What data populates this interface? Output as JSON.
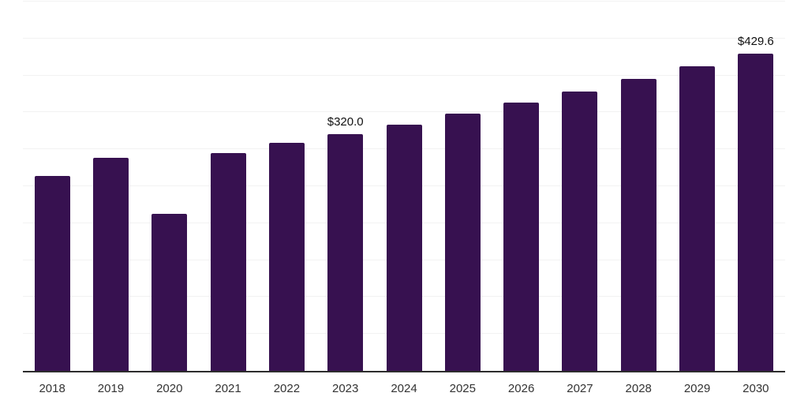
{
  "chart_data": {
    "type": "bar",
    "title": "",
    "subtitle": "",
    "xlabel": "",
    "ylabel": "",
    "categories": [
      "2018",
      "2019",
      "2020",
      "2021",
      "2022",
      "2023",
      "2024",
      "2025",
      "2026",
      "2027",
      "2028",
      "2029",
      "2030"
    ],
    "values": [
      264.0,
      289.0,
      213.0,
      295.0,
      309.0,
      320.0,
      333.8,
      348.1,
      363.1,
      378.7,
      395.0,
      412.0,
      429.6
    ],
    "value_labels": [
      {
        "category": "2023",
        "text": "$320.0"
      },
      {
        "category": "2030",
        "text": "$429.6"
      }
    ],
    "ylim": [
      0,
      500
    ],
    "gridline_step": 50,
    "grid": "horizontal-only",
    "y_axis_tick_labels": "none",
    "legend": "none",
    "colors": {
      "bar": "#371150",
      "gridline": "#f2f2f2",
      "axis_line": "#2d2d2d",
      "tick_label": "#333333",
      "value_label": "#111111",
      "background": "#ffffff"
    }
  }
}
